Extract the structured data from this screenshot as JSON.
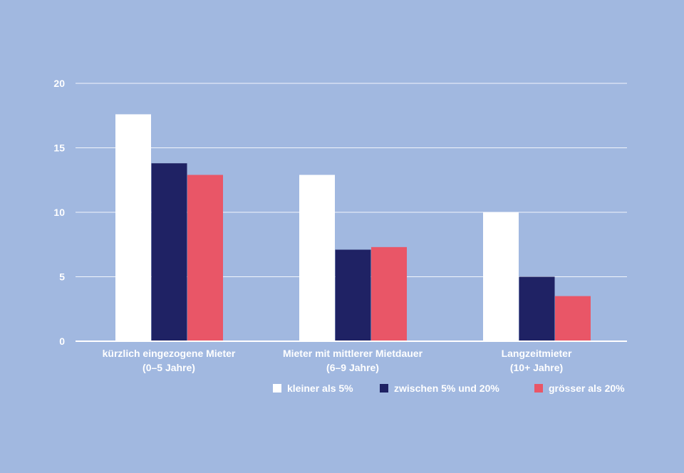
{
  "chart_data": {
    "type": "bar",
    "categories": [
      [
        "kürzlich eingezogene Mieter",
        "(0–5 Jahre)"
      ],
      [
        "Mieter mit mittlerer Mietdauer",
        "(6–9 Jahre)"
      ],
      [
        "Langzeitmieter",
        "(10+ Jahre)"
      ]
    ],
    "series": [
      {
        "name": "kleiner als 5%",
        "color": "#ffffff",
        "values": [
          17.6,
          12.9,
          10.0
        ]
      },
      {
        "name": "zwischen 5% und 20%",
        "color": "#1f2264",
        "values": [
          13.8,
          7.1,
          5.0
        ]
      },
      {
        "name": "grösser als 20%",
        "color": "#e95667",
        "values": [
          12.9,
          7.3,
          3.5
        ]
      }
    ],
    "yticks": [
      "0",
      "5",
      "10",
      "15",
      "20"
    ],
    "ylim": [
      0,
      20
    ],
    "grid": true,
    "legend_position": "bottom-right"
  },
  "colors": {
    "background": "#a1b8e0",
    "gridline": "#ffffff",
    "text": "#ffffff"
  }
}
